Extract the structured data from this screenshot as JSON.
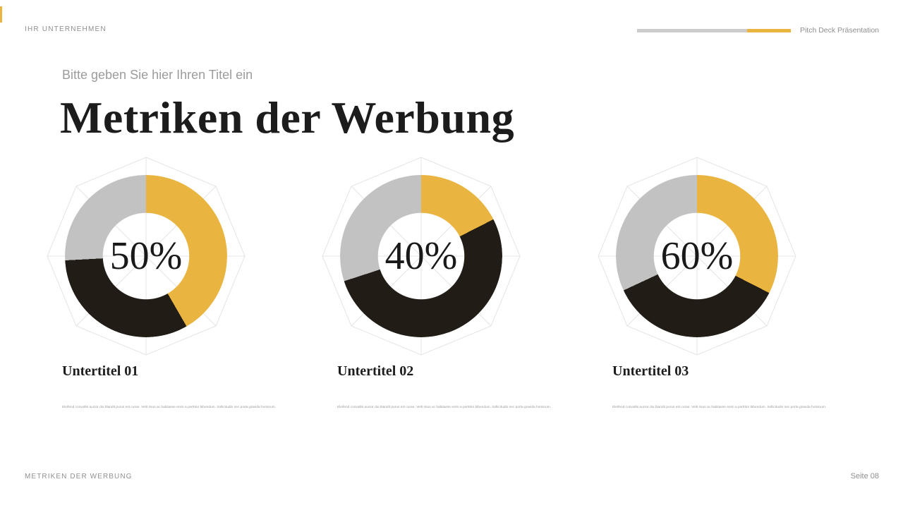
{
  "header": {
    "company": "IHR UNTERNEHMEN",
    "deck_label": "Pitch Deck Präsentation"
  },
  "title_block": {
    "kicker": "Bitte geben Sie hier Ihren Titel ein",
    "title": "Metriken der Werbung"
  },
  "columns": [
    {
      "subtitle": "Untertitel 01",
      "body": "Eleifend convallis auctor dui blandit purus est curae. Velit risus ac habitasse enim a porttitor bibendum. Sollicitudin nec porta gravida hominum."
    },
    {
      "subtitle": "Untertitel 02",
      "body": "Eleifend convallis auctor dui blandit purus est curae. Velit risus ac habitasse enim a porttitor bibendum. Sollicitudin nec porta gravida hominum."
    },
    {
      "subtitle": "Untertitel 03",
      "body": "Eleifend convallis auctor dui blandit purus est curae. Velit risus ac habitasse enim a porttitor bibendum. Sollicitudin nec porta gravida hominum."
    }
  ],
  "footer": {
    "left": "METRIKEN DER WERBUNG",
    "right": "Seite 08"
  },
  "colors": {
    "accent": "#EAB440",
    "dark": "#211D16",
    "gray": "#C2C2C2",
    "track": "#CBCBCB"
  },
  "chart_data": [
    {
      "type": "pie",
      "variant": "donut",
      "title": "Untertitel 01",
      "center_label": "50%",
      "value_percent": 50,
      "legend_position": "none",
      "segments": [
        {
          "name": "highlight",
          "color": "accent",
          "start_deg": 0,
          "end_deg": 150
        },
        {
          "name": "dark",
          "color": "dark",
          "start_deg": 150,
          "end_deg": 267
        },
        {
          "name": "remainder",
          "color": "gray",
          "start_deg": 267,
          "end_deg": 360
        }
      ]
    },
    {
      "type": "pie",
      "variant": "donut",
      "title": "Untertitel 02",
      "center_label": "40%",
      "value_percent": 40,
      "legend_position": "none",
      "segments": [
        {
          "name": "highlight",
          "color": "accent",
          "start_deg": 0,
          "end_deg": 63
        },
        {
          "name": "dark",
          "color": "dark",
          "start_deg": 63,
          "end_deg": 252
        },
        {
          "name": "remainder",
          "color": "gray",
          "start_deg": 252,
          "end_deg": 360
        }
      ]
    },
    {
      "type": "pie",
      "variant": "donut",
      "title": "Untertitel 03",
      "center_label": "60%",
      "value_percent": 60,
      "legend_position": "none",
      "segments": [
        {
          "name": "highlight",
          "color": "accent",
          "start_deg": 0,
          "end_deg": 117
        },
        {
          "name": "dark",
          "color": "dark",
          "start_deg": 117,
          "end_deg": 245
        },
        {
          "name": "remainder",
          "color": "gray",
          "start_deg": 245,
          "end_deg": 360
        }
      ]
    }
  ]
}
